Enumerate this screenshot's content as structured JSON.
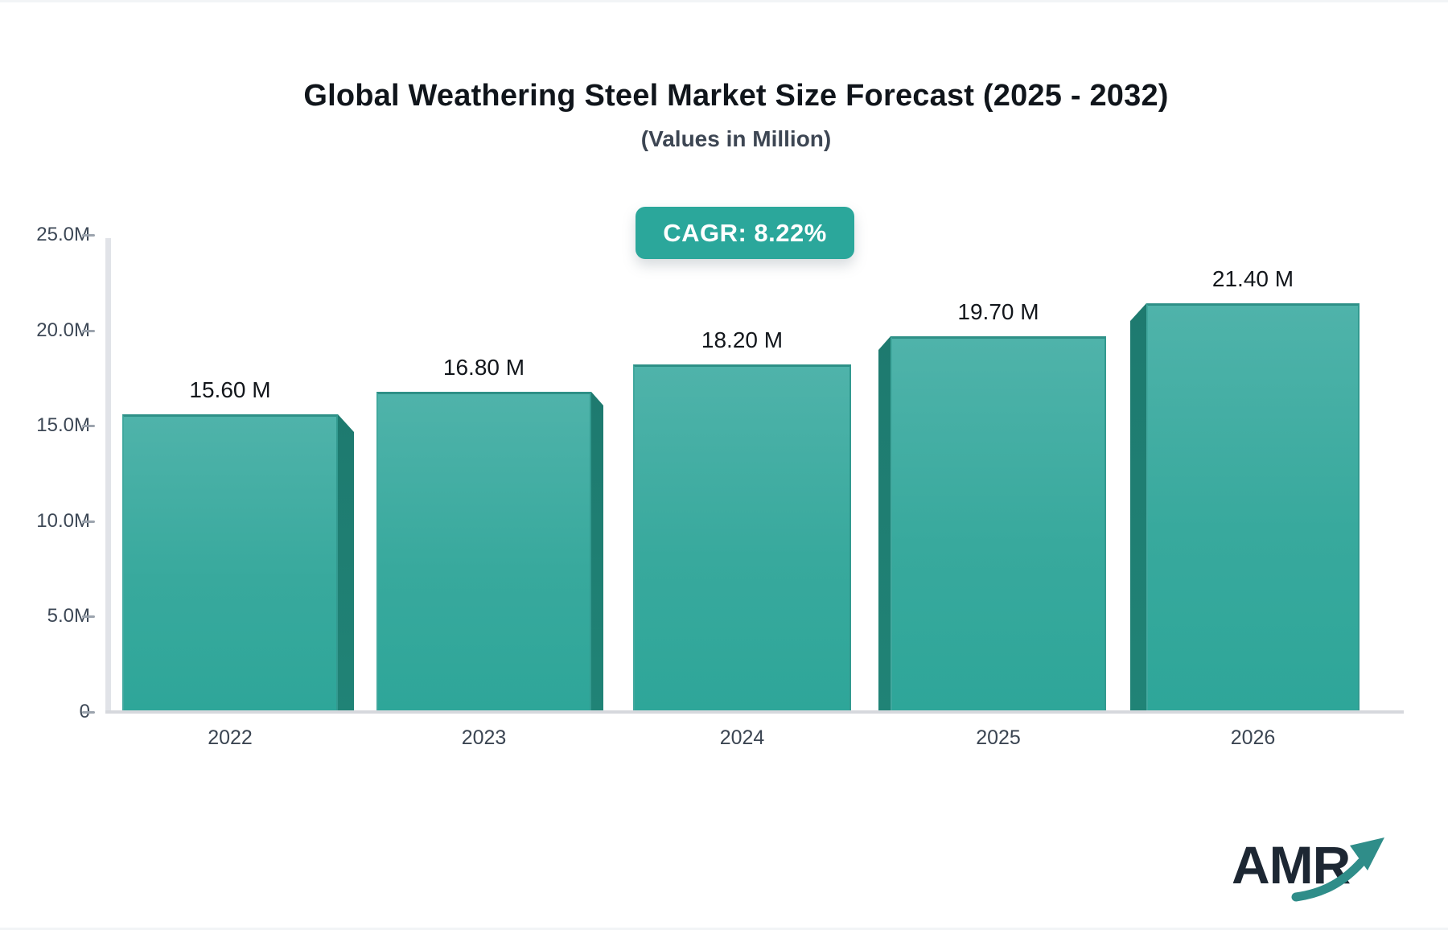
{
  "header": {
    "title": "Global Weathering Steel Market Size Forecast (2025 - 2032)",
    "subtitle": "(Values in Million)"
  },
  "badge": {
    "label": "CAGR: 8.22%",
    "background": "#2BA79B",
    "text_color": "#FFFFFF"
  },
  "chart_data": {
    "type": "bar",
    "title": "Global Weathering Steel Market Size Forecast (2025 - 2032)",
    "subtitle": "(Values in Million)",
    "unit": "Million",
    "cagr": "8.22%",
    "categories": [
      "2022",
      "2023",
      "2024",
      "2025",
      "2026"
    ],
    "values": [
      15.6,
      16.8,
      18.2,
      19.7,
      21.4
    ],
    "data_labels": [
      "15.60 M",
      "16.80 M",
      "18.20 M",
      "19.70 M",
      "21.40 M"
    ],
    "xlabel": "",
    "ylabel": "",
    "ylim": [
      0,
      25
    ],
    "yticks": [
      {
        "label": "25.0M",
        "value": 25
      },
      {
        "label": "20.0M",
        "value": 20
      },
      {
        "label": "15.0M",
        "value": 15
      },
      {
        "label": "10.0M",
        "value": 10
      },
      {
        "label": "5.0M",
        "value": 5
      },
      {
        "label": "0",
        "value": 0
      }
    ],
    "grid": false,
    "legend": false,
    "bar_style": "3d-perspective-box",
    "colors": {
      "bar_top": "#4FB3AA",
      "bar_bottom": "#2EA699",
      "bar_edge": "#2E9087",
      "bar_side_face": "#1E7A6F",
      "axis_line": "#DCDEE3",
      "tick_text": "#3D4856",
      "accent": "#2BA79B"
    }
  },
  "logo": {
    "text": "AMR",
    "arrow_icon": "growth-arrow-icon",
    "text_color": "#1D2733",
    "arrow_color": "#2F8D89"
  }
}
